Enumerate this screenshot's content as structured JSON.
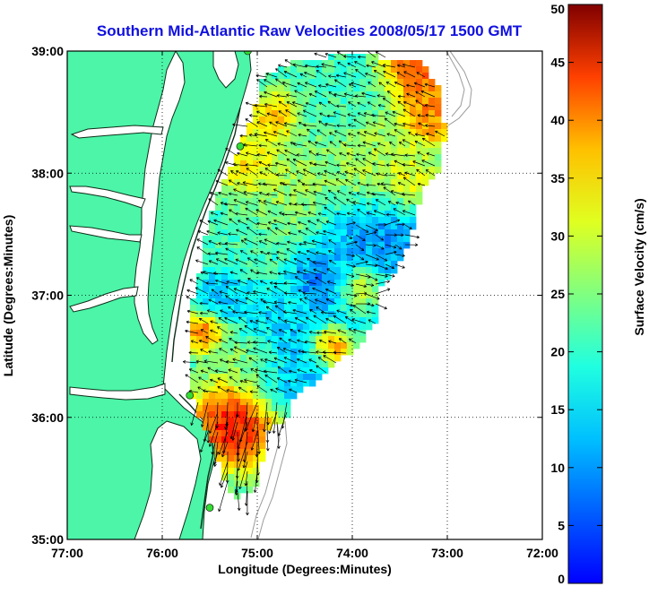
{
  "figure": {
    "title": "Southern Mid-Atlantic Raw Velocities 2008/05/17 1500 GMT",
    "title_color": "#1010e0",
    "xlabel": "Longitude (Degrees:Minutes)",
    "ylabel": "Latitude (Degrees:Minutes)",
    "colorbar_label": "Surface Velocity (cm/s)"
  },
  "chart_data": {
    "type": "heatmap",
    "title": "Southern Mid-Atlantic Raw Velocities 2008/05/17 1500 GMT",
    "xlabel": "Longitude (Degrees:Minutes)",
    "ylabel": "Latitude (Degrees:Minutes)",
    "xlim": [
      -77,
      -72
    ],
    "ylim": [
      35,
      39
    ],
    "x_ticks": [
      "77:00",
      "76:00",
      "75:00",
      "74:00",
      "73:00",
      "72:00"
    ],
    "y_ticks": [
      "35:00",
      "36:00",
      "37:00",
      "38:00",
      "39:00"
    ],
    "grid": true,
    "colorbar": {
      "label": "Surface Velocity (cm/s)",
      "range": [
        0,
        50
      ],
      "ticks": [
        "0",
        "5",
        "10",
        "15",
        "20",
        "25",
        "30",
        "35",
        "40",
        "45",
        "50"
      ],
      "colormap": "jet"
    },
    "land_color": "#4cf5a8",
    "coastline_color": "#0c2e18",
    "radar_sites": [
      {
        "lon": -75.1,
        "lat": 39.0
      },
      {
        "lon": -75.18,
        "lat": 38.22
      },
      {
        "lon": -75.71,
        "lat": 36.18
      },
      {
        "lon": -75.5,
        "lat": 35.26
      }
    ]
  }
}
